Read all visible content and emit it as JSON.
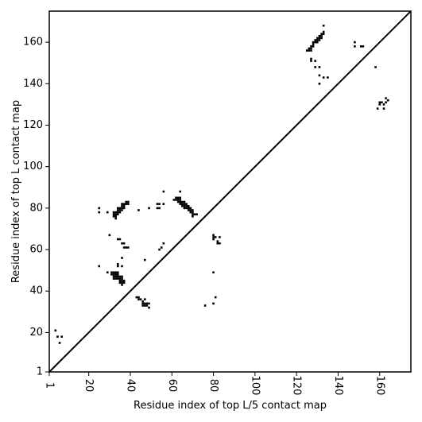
{
  "chart_data": {
    "type": "scatter",
    "title": "",
    "xlabel": "Residue index of top L/5 contact map",
    "ylabel": "Residue index of top L contact map",
    "xlim": [
      1,
      175
    ],
    "ylim": [
      1,
      175
    ],
    "x_ticks": [
      1,
      20,
      40,
      60,
      80,
      100,
      120,
      140,
      160
    ],
    "y_ticks": [
      1,
      20,
      40,
      60,
      80,
      100,
      120,
      140,
      160
    ],
    "x_tick_labels": [
      "1",
      "20",
      "40",
      "60",
      "80",
      "100",
      "120",
      "140",
      "160"
    ],
    "y_tick_labels": [
      "1",
      "20",
      "40",
      "60",
      "80",
      "100",
      "120",
      "140",
      "160"
    ],
    "grid": false,
    "diagonal": true,
    "marker_color": "#000000",
    "contacts": [
      [
        4,
        21
      ],
      [
        5,
        18
      ],
      [
        6,
        15
      ],
      [
        7,
        18
      ],
      [
        25,
        52
      ],
      [
        25,
        78
      ],
      [
        25,
        80
      ],
      [
        29,
        49
      ],
      [
        29,
        78
      ],
      [
        30,
        67
      ],
      [
        31,
        48
      ],
      [
        31,
        49
      ],
      [
        32,
        46
      ],
      [
        32,
        47
      ],
      [
        32,
        48
      ],
      [
        32,
        49
      ],
      [
        33,
        46
      ],
      [
        33,
        47
      ],
      [
        33,
        48
      ],
      [
        33,
        49
      ],
      [
        34,
        46
      ],
      [
        34,
        47
      ],
      [
        34,
        48
      ],
      [
        34,
        49
      ],
      [
        34,
        53
      ],
      [
        34,
        52
      ],
      [
        34,
        65
      ],
      [
        35,
        65
      ],
      [
        35,
        44
      ],
      [
        35,
        45
      ],
      [
        35,
        46
      ],
      [
        35,
        47
      ],
      [
        36,
        43
      ],
      [
        36,
        44
      ],
      [
        36,
        45
      ],
      [
        36,
        46
      ],
      [
        36,
        47
      ],
      [
        37,
        44
      ],
      [
        37,
        45
      ],
      [
        36,
        52
      ],
      [
        36,
        56
      ],
      [
        36,
        63
      ],
      [
        37,
        63
      ],
      [
        37,
        61
      ],
      [
        38,
        61
      ],
      [
        39,
        61
      ],
      [
        32,
        76
      ],
      [
        32,
        77
      ],
      [
        32,
        78
      ],
      [
        33,
        75
      ],
      [
        33,
        76
      ],
      [
        33,
        77
      ],
      [
        33,
        78
      ],
      [
        34,
        77
      ],
      [
        34,
        78
      ],
      [
        34,
        79
      ],
      [
        34,
        80
      ],
      [
        35,
        78
      ],
      [
        35,
        79
      ],
      [
        35,
        80
      ],
      [
        36,
        79
      ],
      [
        36,
        80
      ],
      [
        36,
        81
      ],
      [
        36,
        82
      ],
      [
        37,
        80
      ],
      [
        37,
        81
      ],
      [
        37,
        82
      ],
      [
        38,
        82
      ],
      [
        38,
        83
      ],
      [
        39,
        82
      ],
      [
        39,
        83
      ],
      [
        43,
        37
      ],
      [
        44,
        36
      ],
      [
        44,
        37
      ],
      [
        45,
        36
      ],
      [
        46,
        33
      ],
      [
        46,
        34
      ],
      [
        46,
        35
      ],
      [
        47,
        33
      ],
      [
        47,
        34
      ],
      [
        47,
        36
      ],
      [
        48,
        33
      ],
      [
        48,
        34
      ],
      [
        49,
        32
      ],
      [
        49,
        34
      ],
      [
        44,
        79
      ],
      [
        47,
        55
      ],
      [
        49,
        80
      ],
      [
        53,
        80
      ],
      [
        53,
        82
      ],
      [
        54,
        80
      ],
      [
        54,
        82
      ],
      [
        56,
        82
      ],
      [
        56,
        88
      ],
      [
        54,
        60
      ],
      [
        55,
        61
      ],
      [
        56,
        63
      ],
      [
        61,
        84
      ],
      [
        62,
        84
      ],
      [
        62,
        85
      ],
      [
        63,
        83
      ],
      [
        63,
        84
      ],
      [
        63,
        85
      ],
      [
        64,
        82
      ],
      [
        64,
        83
      ],
      [
        64,
        84
      ],
      [
        64,
        85
      ],
      [
        64,
        88
      ],
      [
        65,
        81
      ],
      [
        65,
        82
      ],
      [
        65,
        83
      ],
      [
        66,
        80
      ],
      [
        66,
        81
      ],
      [
        66,
        82
      ],
      [
        66,
        83
      ],
      [
        67,
        80
      ],
      [
        67,
        81
      ],
      [
        67,
        82
      ],
      [
        68,
        79
      ],
      [
        68,
        80
      ],
      [
        68,
        81
      ],
      [
        69,
        78
      ],
      [
        69,
        79
      ],
      [
        69,
        80
      ],
      [
        70,
        76
      ],
      [
        70,
        77
      ],
      [
        70,
        78
      ],
      [
        70,
        79
      ],
      [
        71,
        77
      ],
      [
        72,
        77
      ],
      [
        76,
        33
      ],
      [
        80,
        34
      ],
      [
        80,
        49
      ],
      [
        80,
        65
      ],
      [
        80,
        66
      ],
      [
        80,
        67
      ],
      [
        81,
        37
      ],
      [
        81,
        66
      ],
      [
        82,
        63
      ],
      [
        82,
        64
      ],
      [
        83,
        63
      ],
      [
        83,
        66
      ],
      [
        125,
        156
      ],
      [
        126,
        156
      ],
      [
        126,
        157
      ],
      [
        127,
        156
      ],
      [
        127,
        157
      ],
      [
        127,
        158
      ],
      [
        128,
        158
      ],
      [
        128,
        159
      ],
      [
        128,
        160
      ],
      [
        129,
        160
      ],
      [
        129,
        161
      ],
      [
        130,
        160
      ],
      [
        130,
        161
      ],
      [
        130,
        162
      ],
      [
        131,
        161
      ],
      [
        131,
        162
      ],
      [
        131,
        163
      ],
      [
        132,
        162
      ],
      [
        132,
        163
      ],
      [
        132,
        164
      ],
      [
        133,
        164
      ],
      [
        133,
        165
      ],
      [
        133,
        168
      ],
      [
        127,
        152
      ],
      [
        127,
        151
      ],
      [
        129,
        151
      ],
      [
        129,
        148
      ],
      [
        131,
        148
      ],
      [
        131,
        144
      ],
      [
        131,
        140
      ],
      [
        133,
        143
      ],
      [
        135,
        143
      ],
      [
        148,
        158
      ],
      [
        148,
        160
      ],
      [
        151,
        158
      ],
      [
        152,
        158
      ],
      [
        158,
        148
      ],
      [
        159,
        128
      ],
      [
        160,
        130
      ],
      [
        160,
        131
      ],
      [
        161,
        131
      ],
      [
        162,
        128
      ],
      [
        162,
        130
      ],
      [
        163,
        131
      ],
      [
        163,
        133
      ],
      [
        164,
        132
      ]
    ]
  }
}
